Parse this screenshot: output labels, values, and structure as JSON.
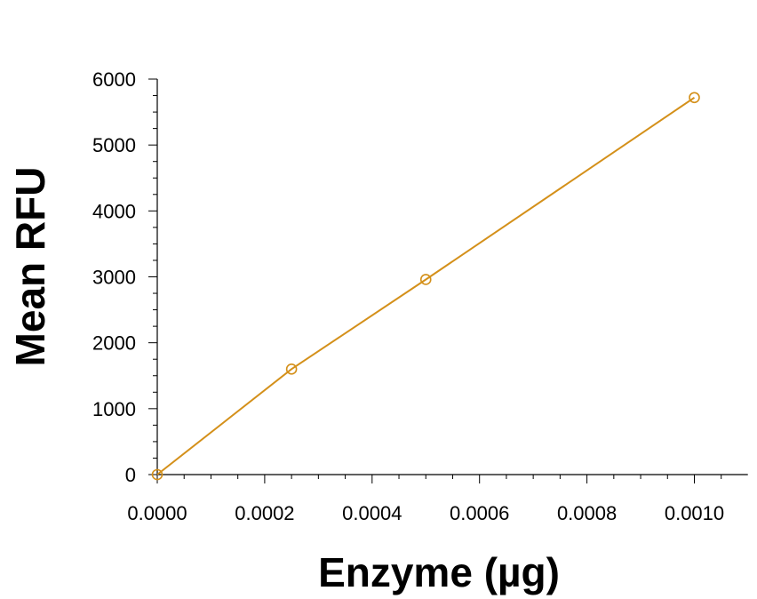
{
  "chart_data": {
    "type": "line",
    "title": "",
    "xlabel": "Enzyme (µg)",
    "ylabel": "Mean RFU",
    "xlim": [
      0,
      0.00105
    ],
    "ylim": [
      0,
      6000
    ],
    "x_ticks": [
      "0.0000",
      "0.0002",
      "0.0004",
      "0.0006",
      "0.0008",
      "0.0010"
    ],
    "x_tick_values": [
      0,
      0.0002,
      0.0004,
      0.0006,
      0.0008,
      0.001
    ],
    "y_ticks": [
      "0",
      "1000",
      "2000",
      "3000",
      "4000",
      "5000",
      "6000"
    ],
    "y_tick_values": [
      0,
      1000,
      2000,
      3000,
      4000,
      5000,
      6000
    ],
    "grid": false,
    "legend": "none",
    "series": [
      {
        "color": "#d4901a",
        "marker": "open-circle",
        "x": [
          0,
          0.00025,
          0.0005,
          0.001
        ],
        "y": [
          0,
          1600,
          2960,
          5720
        ]
      }
    ]
  }
}
